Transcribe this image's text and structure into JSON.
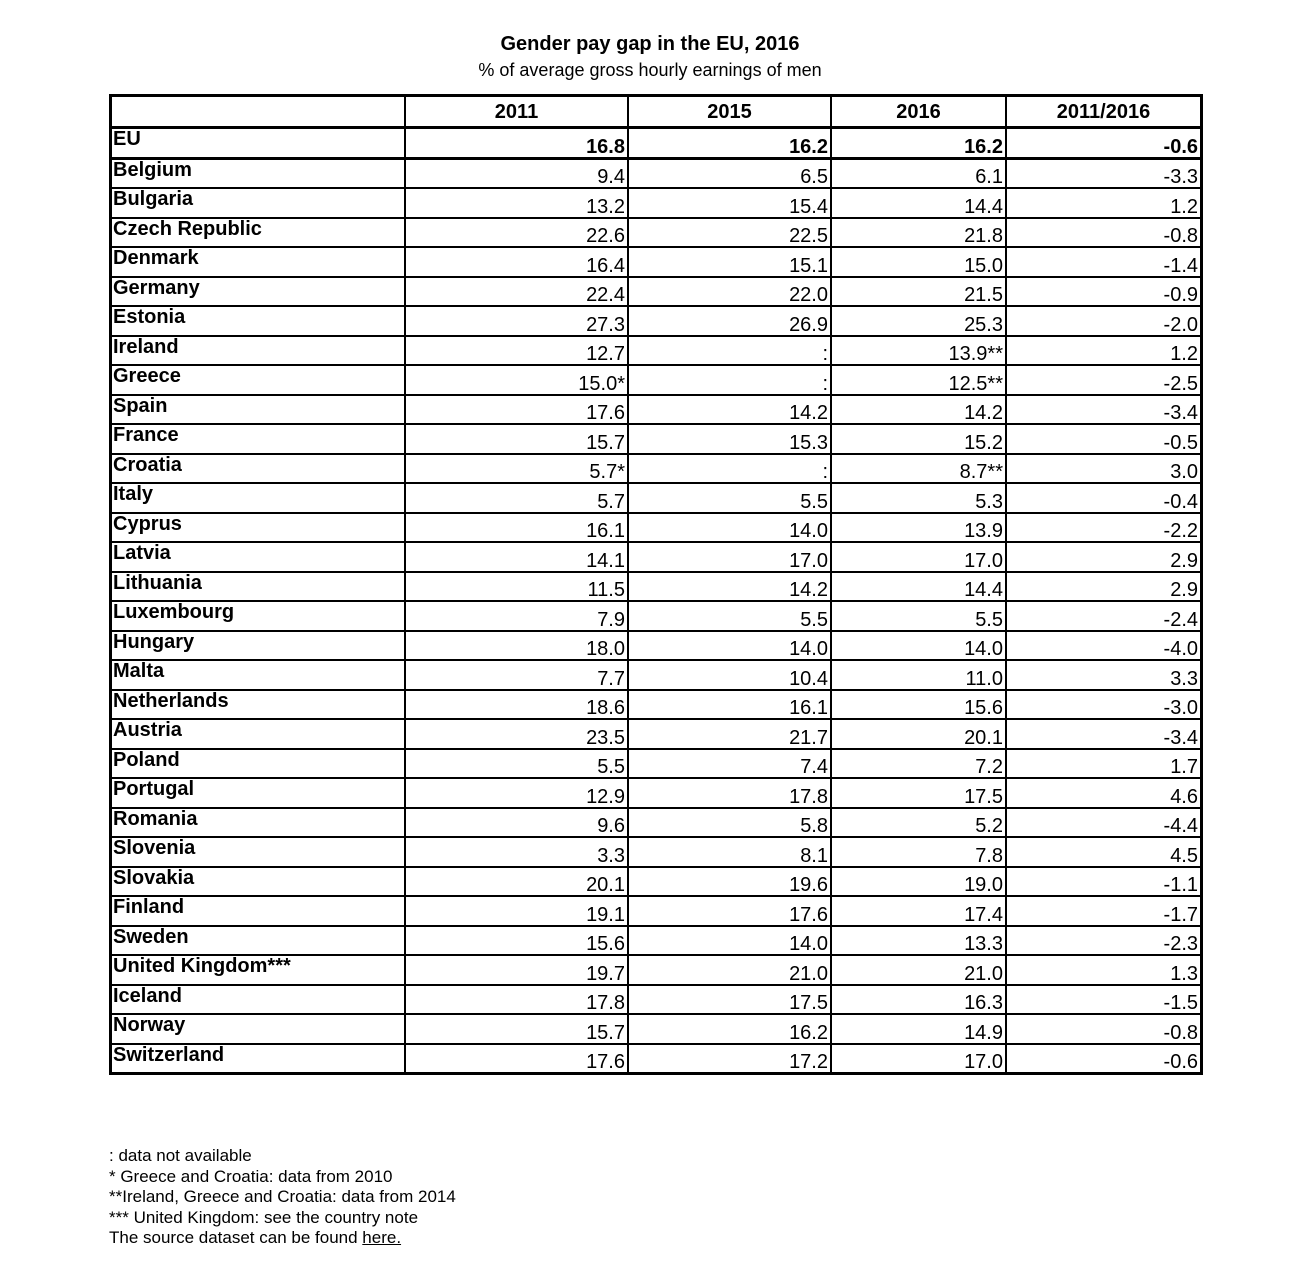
{
  "title": "Gender pay gap in the EU, 2016",
  "subtitle": "% of average gross hourly earnings of men",
  "columns": [
    "",
    "2011",
    "2015",
    "2016",
    "2011/2016"
  ],
  "rows": [
    [
      "EU",
      "16.8",
      "16.2",
      "16.2",
      "-0.6"
    ],
    [
      "Belgium",
      "9.4",
      "6.5",
      "6.1",
      "-3.3"
    ],
    [
      "Bulgaria",
      "13.2",
      "15.4",
      "14.4",
      "1.2"
    ],
    [
      "Czech Republic",
      "22.6",
      "22.5",
      "21.8",
      "-0.8"
    ],
    [
      "Denmark",
      "16.4",
      "15.1",
      "15.0",
      "-1.4"
    ],
    [
      "Germany",
      "22.4",
      "22.0",
      "21.5",
      "-0.9"
    ],
    [
      "Estonia",
      "27.3",
      "26.9",
      "25.3",
      "-2.0"
    ],
    [
      "Ireland",
      "12.7",
      ":",
      "13.9**",
      "1.2"
    ],
    [
      "Greece",
      "15.0*",
      ":",
      "12.5**",
      "-2.5"
    ],
    [
      "Spain",
      "17.6",
      "14.2",
      "14.2",
      "-3.4"
    ],
    [
      "France",
      "15.7",
      "15.3",
      "15.2",
      "-0.5"
    ],
    [
      "Croatia",
      "5.7*",
      ":",
      "8.7**",
      "3.0"
    ],
    [
      "Italy",
      "5.7",
      "5.5",
      "5.3",
      "-0.4"
    ],
    [
      "Cyprus",
      "16.1",
      "14.0",
      "13.9",
      "-2.2"
    ],
    [
      "Latvia",
      "14.1",
      "17.0",
      "17.0",
      "2.9"
    ],
    [
      "Lithuania",
      "11.5",
      "14.2",
      "14.4",
      "2.9"
    ],
    [
      "Luxembourg",
      "7.9",
      "5.5",
      "5.5",
      "-2.4"
    ],
    [
      "Hungary",
      "18.0",
      "14.0",
      "14.0",
      "-4.0"
    ],
    [
      "Malta",
      "7.7",
      "10.4",
      "11.0",
      "3.3"
    ],
    [
      "Netherlands",
      "18.6",
      "16.1",
      "15.6",
      "-3.0"
    ],
    [
      "Austria",
      "23.5",
      "21.7",
      "20.1",
      "-3.4"
    ],
    [
      "Poland",
      "5.5",
      "7.4",
      "7.2",
      "1.7"
    ],
    [
      "Portugal",
      "12.9",
      "17.8",
      "17.5",
      "4.6"
    ],
    [
      "Romania",
      "9.6",
      "5.8",
      "5.2",
      "-4.4"
    ],
    [
      "Slovenia",
      "3.3",
      "8.1",
      "7.8",
      "4.5"
    ],
    [
      "Slovakia",
      "20.1",
      "19.6",
      "19.0",
      "-1.1"
    ],
    [
      "Finland",
      "19.1",
      "17.6",
      "17.4",
      "-1.7"
    ],
    [
      "Sweden",
      "15.6",
      "14.0",
      "13.3",
      "-2.3"
    ],
    [
      "United Kingdom***",
      "19.7",
      "21.0",
      "21.0",
      "1.3"
    ],
    [
      "Iceland",
      "17.8",
      "17.5",
      "16.3",
      "-1.5"
    ],
    [
      "Norway",
      "15.7",
      "16.2",
      "14.9",
      "-0.8"
    ],
    [
      "Switzerland",
      "17.6",
      "17.2",
      "17.0",
      "-0.6"
    ]
  ],
  "notes": [
    ": data not available",
    "* Greece and Croatia: data from 2010",
    "**Ireland, Greece and Croatia: data from 2014",
    "*** United Kingdom:  see the country note"
  ],
  "source_text": "The source dataset can be found ",
  "source_link": "here."
}
